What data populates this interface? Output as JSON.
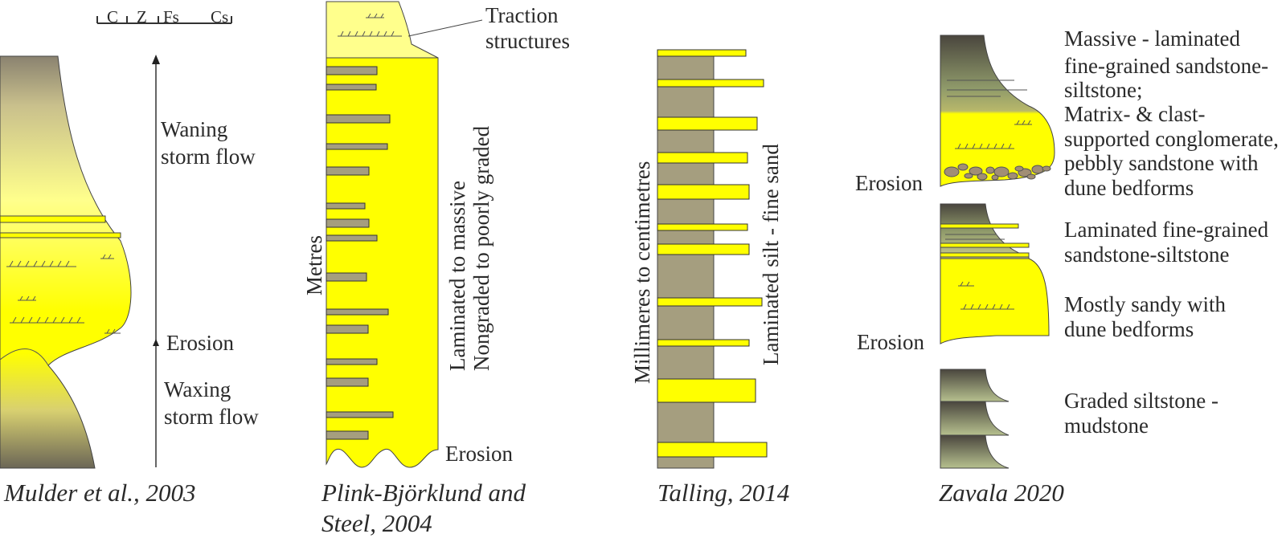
{
  "colors": {
    "sand": "#ffff00",
    "sand_light": "#ffff8c",
    "mud": "#a59e7f",
    "mud_green": "#8f9a6a",
    "dark_top": "#4a463e",
    "outline": "#333333",
    "text": "#2a2a2a",
    "clast": "#a18e75"
  },
  "mulder": {
    "scale_labels": [
      "C",
      "Z",
      "Fs",
      "Cs"
    ],
    "waning": [
      "Waning",
      "storm flow"
    ],
    "erosion": "Erosion",
    "waxing": [
      "Waxing",
      "storm flow"
    ],
    "citation": "Mulder et al., 2003"
  },
  "plink": {
    "traction": [
      "Traction",
      "structures"
    ],
    "vertical_label": "Metres",
    "description": [
      "Laminated to massive",
      "Nongraded to poorly graded"
    ],
    "erosion": "Erosion",
    "citation": [
      "Plink-Björklund and",
      "Steel, 2004"
    ]
  },
  "talling": {
    "vertical_left": "Millimeres to centimetres",
    "vertical_right": "Laminated silt - fine sand",
    "citation": "Talling, 2014"
  },
  "zavala": {
    "unit1": [
      "Massive - laminated",
      "fine-grained  sandstone-",
      "siltstone;",
      "Matrix- & clast-",
      "supported conglomerate,",
      "pebbly sandstone with",
      "dune bedforms"
    ],
    "erosion1": "Erosion",
    "unit2": [
      "Laminated fine-grained",
      "sandstone-siltstone"
    ],
    "unit3": [
      "Mostly sandy with",
      "dune bedforms"
    ],
    "erosion2": "Erosion",
    "unit4": [
      "Graded siltstone -",
      "mudstone"
    ],
    "citation": "Zavala 2020"
  }
}
